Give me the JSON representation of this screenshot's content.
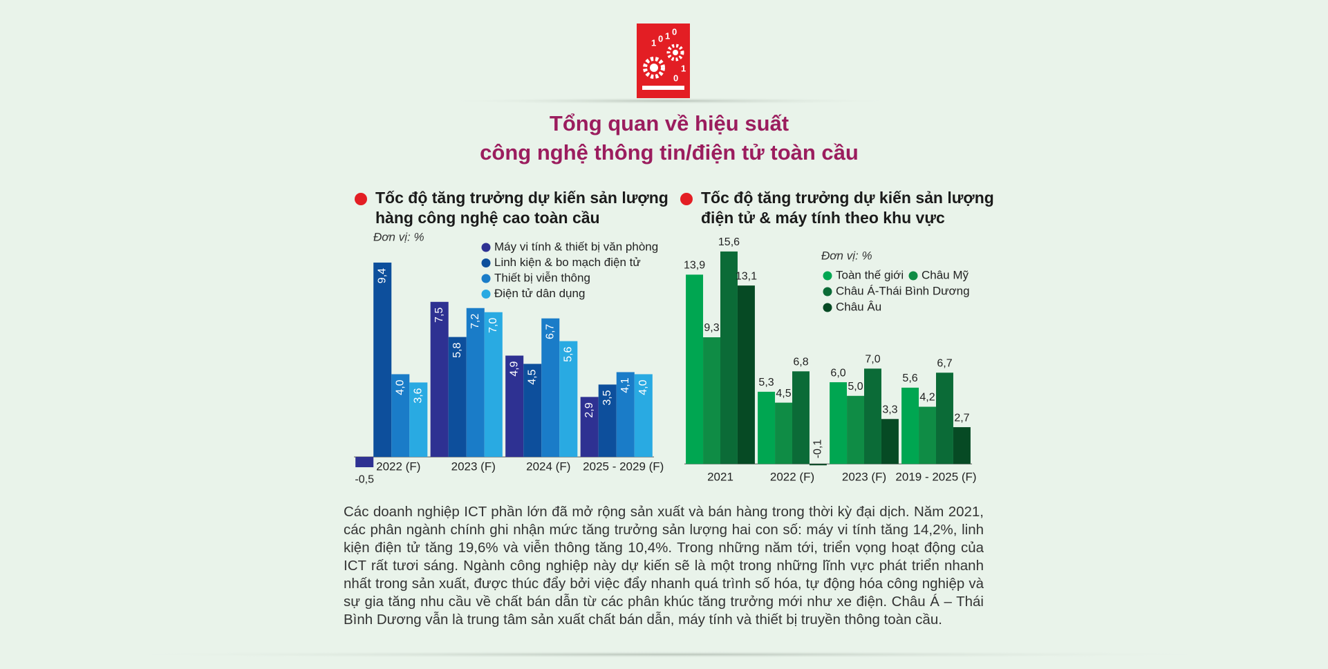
{
  "title": [
    "Tổng quan về hiệu suất",
    "công nghệ thông tin/điện tử toàn cầu"
  ],
  "chart_data": [
    {
      "type": "bar",
      "title": [
        "Tốc độ tăng trưởng dự kiến sản lượng",
        "hàng công nghệ cao toàn cầu"
      ],
      "unit_label": "Đơn vị: %",
      "categories": [
        "2022 (F)",
        "2023 (F)",
        "2024 (F)",
        "2025 - 2029 (F)"
      ],
      "ylim": [
        -1,
        10
      ],
      "series": [
        {
          "name": "Máy vi tính & thiết bị văn phòng",
          "color": "#2e3192",
          "values": [
            -0.5,
            7.5,
            4.9,
            2.9
          ],
          "value_labels": [
            "-0,5",
            "7,5",
            "4,9",
            "2,9"
          ]
        },
        {
          "name": "Linh kiện & bo mạch điện tử",
          "color": "#0d4f9c",
          "values": [
            9.4,
            5.8,
            4.5,
            3.5
          ],
          "value_labels": [
            "9,4",
            "5,8",
            "4,5",
            "3,5"
          ]
        },
        {
          "name": "Thiết bị viễn thông",
          "color": "#1a7cc8",
          "values": [
            4.0,
            7.2,
            6.7,
            4.1
          ],
          "value_labels": [
            "4,0",
            "7,2",
            "6,7",
            "4,1"
          ]
        },
        {
          "name": "Điện tử dân dụng",
          "color": "#29aae2",
          "values": [
            3.6,
            7.0,
            5.6,
            4.0
          ],
          "value_labels": [
            "3,6",
            "7,0",
            "5,6",
            "4,0"
          ]
        }
      ]
    },
    {
      "type": "bar",
      "title": [
        "Tốc độ tăng trưởng dự kiến sản lượng",
        "điện tử & máy tính theo khu vực"
      ],
      "unit_label": "Đơn vị: %",
      "categories": [
        "2021",
        "2022 (F)",
        "2023 (F)",
        "2019 - 2025 (F)"
      ],
      "ylim": [
        -1,
        16
      ],
      "series": [
        {
          "name": "Toàn thế giới",
          "color": "#00a651",
          "values": [
            13.9,
            5.3,
            6.0,
            5.6
          ],
          "value_labels": [
            "13,9",
            "5,3",
            "6,0",
            "5,6"
          ]
        },
        {
          "name": "Châu Mỹ",
          "color": "#0f8c45",
          "values": [
            9.3,
            4.5,
            5.0,
            4.2
          ],
          "value_labels": [
            "9,3",
            "4,5",
            "5,0",
            "4,2"
          ]
        },
        {
          "name": "Châu Á-Thái Bình Dương",
          "color": "#0b6b37",
          "values": [
            15.6,
            6.8,
            7.0,
            6.7
          ],
          "value_labels": [
            "15,6",
            "6,8",
            "7,0",
            "6,7"
          ]
        },
        {
          "name": "Châu Âu",
          "color": "#064a24",
          "values": [
            13.1,
            -0.1,
            3.3,
            2.7
          ],
          "value_labels": [
            "13,1",
            "-0,1",
            "3,3",
            "2,7"
          ]
        }
      ]
    }
  ],
  "body_text": "Các doanh nghiệp ICT phần lớn đã mở rộng sản xuất và bán hàng trong thời kỳ đại dịch. Năm 2021, các phân ngành chính ghi nhận mức tăng trưởng sản lượng hai con số: máy vi tính tăng 14,2%, linh kiện điện tử tăng 19,6% và viễn thông tăng 10,4%. Trong những năm tới, triển vọng hoạt động của ICT rất tươi sáng. Ngành công nghiệp này dự kiến sẽ là một trong những lĩnh vực phát triển nhanh nhất trong sản xuất, được thúc đẩy bởi việc đẩy nhanh quá trình số hóa, tự động hóa công nghiệp và sự gia tăng nhu cầu về chất bán dẫn từ các phân khúc tăng trưởng mới như xe điện. Châu Á – Thái Bình Dương vẫn là trung tâm sản xuất chất bán dẫn, máy tính và thiết bị truyền thông toàn cầu."
}
